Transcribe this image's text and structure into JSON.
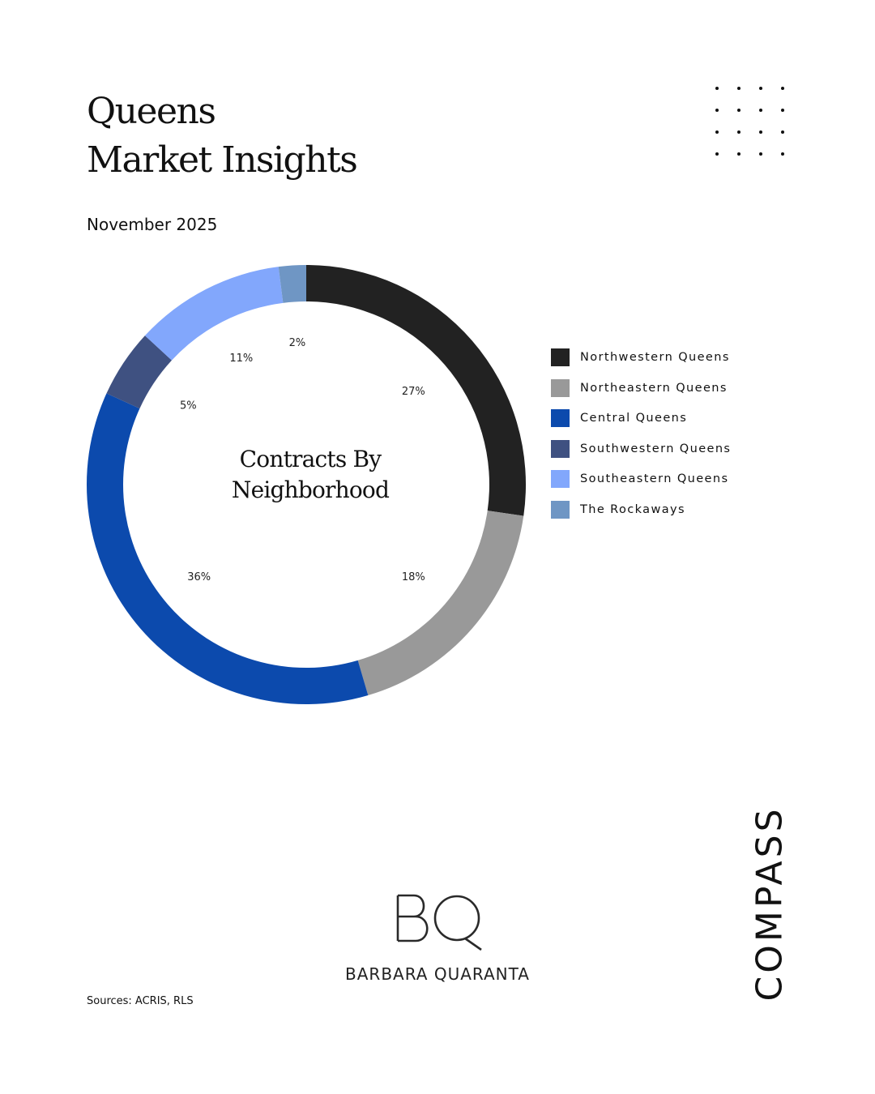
{
  "header": {
    "title_line1": "Queens",
    "title_line2": "Market Insights",
    "date": "November 2025"
  },
  "chart_data": {
    "type": "pie",
    "donut": true,
    "title": "Contracts By Neighborhood",
    "title_line1": "Contracts By",
    "title_line2": "Neighborhood",
    "legend_placement": "right",
    "slices": [
      {
        "name": "Northwestern Queens",
        "value": 27,
        "label": "27%",
        "color": "#222222"
      },
      {
        "name": "Northeastern Queens",
        "value": 18,
        "label": "18%",
        "color": "#999999"
      },
      {
        "name": "Central Queens",
        "value": 36,
        "label": "36%",
        "color": "#0c4aad"
      },
      {
        "name": "Southwestern Queens",
        "value": 5,
        "label": "5%",
        "color": "#3f5181"
      },
      {
        "name": "Southeastern Queens",
        "value": 11,
        "label": "11%",
        "color": "#82a7fc"
      },
      {
        "name": "The Rockaways",
        "value": 2,
        "label": "2%",
        "color": "#6f96c4"
      }
    ]
  },
  "branding": {
    "monogram": "BQ",
    "agent_name": "BARBARA QUARANTA",
    "brokerage": "COMPASS"
  },
  "footer": {
    "sources": "Sources: ACRIS, RLS"
  }
}
